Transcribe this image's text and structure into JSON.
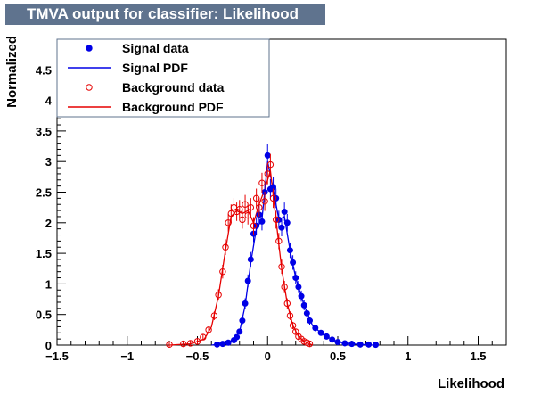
{
  "window": {
    "title": "TMVA output for classifier: Likelihood"
  },
  "colors": {
    "title_bar": "#5f738e",
    "signal": "#0000e6",
    "background": "#e60000"
  },
  "legend": {
    "placement": "top-left",
    "entries": [
      {
        "label": "Signal data",
        "marker": "filled-circle",
        "color": "#0000e6"
      },
      {
        "label": "Signal PDF",
        "marker": "line",
        "color": "#0000e6"
      },
      {
        "label": "Background data",
        "marker": "open-circle",
        "color": "#e60000"
      },
      {
        "label": "Background PDF",
        "marker": "line",
        "color": "#e60000"
      }
    ]
  },
  "chart_data": {
    "type": "scatter",
    "title": "TMVA output for classifier: Likelihood",
    "xlabel": "Likelihood",
    "ylabel": "Normalized",
    "xlim": [
      -1.5,
      1.7
    ],
    "ylim": [
      0,
      5.0
    ],
    "xticks": [
      "-1.5",
      "-1",
      "-0.5",
      "0",
      "0.5",
      "1",
      "1.5"
    ],
    "yticks": [
      "0",
      "0.5",
      "1",
      "1.5",
      "2",
      "2.5",
      "3",
      "3.5",
      "4",
      "4.5"
    ],
    "grid": false,
    "series": [
      {
        "name": "Signal data",
        "style": "points-filled",
        "color": "#0000e6",
        "x": [
          -0.36,
          -0.32,
          -0.28,
          -0.24,
          -0.22,
          -0.2,
          -0.18,
          -0.16,
          -0.14,
          -0.12,
          -0.1,
          -0.08,
          -0.06,
          -0.04,
          -0.02,
          0.0,
          0.02,
          0.04,
          0.06,
          0.08,
          0.1,
          0.12,
          0.14,
          0.16,
          0.18,
          0.2,
          0.22,
          0.24,
          0.26,
          0.28,
          0.3,
          0.34,
          0.38,
          0.42,
          0.46,
          0.5,
          0.55,
          0.6,
          0.66,
          0.72,
          0.77
        ],
        "y": [
          0.01,
          0.02,
          0.04,
          0.08,
          0.13,
          0.22,
          0.4,
          0.68,
          1.05,
          1.4,
          1.82,
          1.95,
          2.13,
          2.02,
          2.5,
          3.1,
          2.55,
          2.58,
          2.4,
          2.05,
          1.92,
          2.18,
          2.0,
          1.55,
          1.35,
          1.1,
          0.95,
          0.8,
          0.65,
          0.52,
          0.4,
          0.28,
          0.2,
          0.14,
          0.09,
          0.05,
          0.03,
          0.02,
          0.01,
          0.01,
          0.005
        ]
      },
      {
        "name": "Signal PDF",
        "style": "line",
        "color": "#0000e6",
        "x": [
          -0.4,
          -0.3,
          -0.25,
          -0.2,
          -0.16,
          -0.12,
          -0.08,
          -0.04,
          0.0,
          0.04,
          0.08,
          0.12,
          0.16,
          0.2,
          0.26,
          0.32,
          0.4,
          0.5,
          0.6,
          0.75
        ],
        "y": [
          0.0,
          0.03,
          0.08,
          0.22,
          0.65,
          1.35,
          1.9,
          2.05,
          3.0,
          2.55,
          2.05,
          2.1,
          1.55,
          1.1,
          0.65,
          0.32,
          0.16,
          0.05,
          0.02,
          0.0
        ]
      },
      {
        "name": "Background data",
        "style": "points-open",
        "color": "#e60000",
        "x": [
          -0.7,
          -0.6,
          -0.55,
          -0.5,
          -0.46,
          -0.42,
          -0.38,
          -0.35,
          -0.32,
          -0.3,
          -0.28,
          -0.26,
          -0.24,
          -0.22,
          -0.2,
          -0.18,
          -0.16,
          -0.14,
          -0.12,
          -0.1,
          -0.08,
          -0.06,
          -0.04,
          -0.02,
          0.0,
          0.02,
          0.04,
          0.06,
          0.08,
          0.1,
          0.12,
          0.14,
          0.16,
          0.18,
          0.2,
          0.22,
          0.24,
          0.26,
          0.28,
          0.3
        ],
        "y": [
          0.01,
          0.02,
          0.03,
          0.06,
          0.13,
          0.25,
          0.48,
          0.82,
          1.2,
          1.6,
          2.0,
          2.15,
          2.25,
          2.18,
          2.22,
          2.05,
          2.3,
          2.12,
          2.25,
          1.95,
          2.4,
          2.25,
          2.65,
          2.35,
          2.8,
          2.95,
          2.4,
          2.05,
          1.7,
          1.28,
          0.95,
          0.68,
          0.48,
          0.32,
          0.22,
          0.14,
          0.1,
          0.06,
          0.04,
          0.02
        ]
      },
      {
        "name": "Background PDF",
        "style": "line",
        "color": "#e60000",
        "x": [
          -0.7,
          -0.55,
          -0.45,
          -0.4,
          -0.35,
          -0.3,
          -0.26,
          -0.22,
          -0.18,
          -0.14,
          -0.1,
          -0.06,
          -0.02,
          0.02,
          0.06,
          0.1,
          0.14,
          0.18,
          0.22,
          0.26,
          0.32
        ],
        "y": [
          0.0,
          0.02,
          0.1,
          0.3,
          0.8,
          1.55,
          2.1,
          2.2,
          2.15,
          2.2,
          2.0,
          2.3,
          2.55,
          2.85,
          2.05,
          1.25,
          0.68,
          0.32,
          0.14,
          0.06,
          0.0
        ]
      }
    ]
  }
}
